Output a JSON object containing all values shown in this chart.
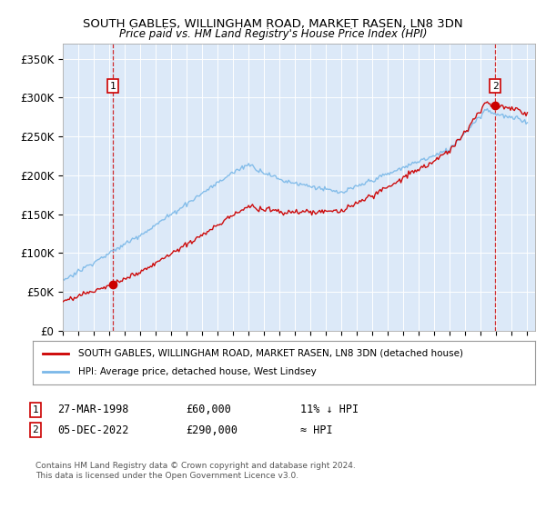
{
  "title1": "SOUTH GABLES, WILLINGHAM ROAD, MARKET RASEN, LN8 3DN",
  "title2": "Price paid vs. HM Land Registry's House Price Index (HPI)",
  "bg_color": "#ffffff",
  "plot_bg_color": "#dce9f8",
  "ylim": [
    0,
    370000
  ],
  "yticks": [
    0,
    50000,
    100000,
    150000,
    200000,
    250000,
    300000,
    350000
  ],
  "ytick_labels": [
    "£0",
    "£50K",
    "£100K",
    "£150K",
    "£200K",
    "£250K",
    "£300K",
    "£350K"
  ],
  "legend_line1": "SOUTH GABLES, WILLINGHAM ROAD, MARKET RASEN, LN8 3DN (detached house)",
  "legend_line2": "HPI: Average price, detached house, West Lindsey",
  "sale1_date": "27-MAR-1998",
  "sale1_price": 60000,
  "sale1_hpi_note": "11% ↓ HPI",
  "sale1_x": 1998.23,
  "sale2_date": "05-DEC-2022",
  "sale2_price": 290000,
  "sale2_hpi_note": "≈ HPI",
  "sale2_x": 2022.92,
  "red_color": "#cc0000",
  "blue_color": "#7ab8e8",
  "footer": "Contains HM Land Registry data © Crown copyright and database right 2024.\nThis data is licensed under the Open Government Licence v3.0."
}
